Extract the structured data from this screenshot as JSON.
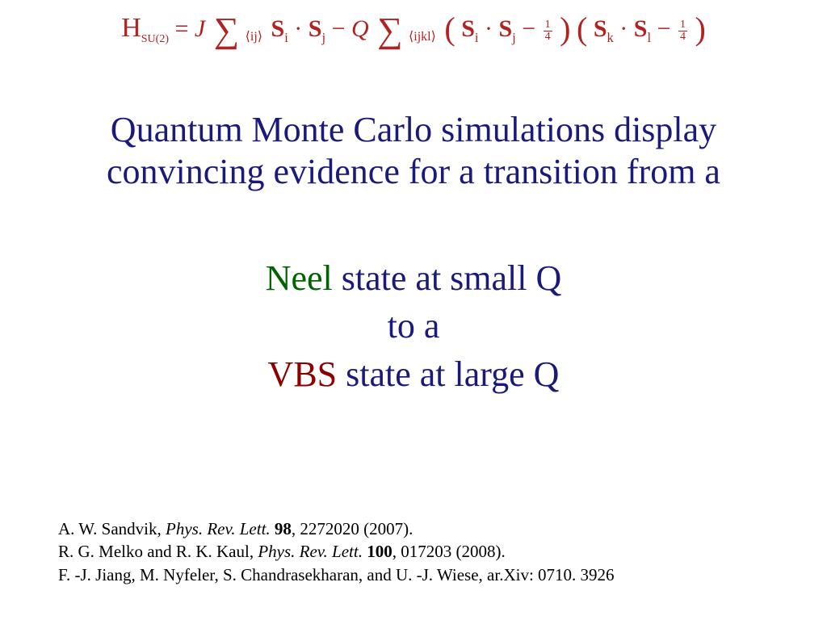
{
  "equation": {
    "color": "#b22222",
    "hamiltonian_symbol": "H",
    "subscript": "SU(2)",
    "equals": " = ",
    "J": "J",
    "sum1_under": "⟨ij⟩",
    "term1_Si": "S",
    "term1_i": "i",
    "dot": " · ",
    "term1_Sj": "S",
    "term1_j": "j",
    "minus": " − ",
    "Q": "Q",
    "sum2_under": "⟨ijkl⟩",
    "lparen": "(",
    "rparen": ")",
    "frac_num": "1",
    "frac_den": "4",
    "term2_Sk": "S",
    "term2_k": "k",
    "term2_Sl": "S",
    "term2_l": "l",
    "sigma_glyph": "∑"
  },
  "main": {
    "line1": "Quantum Monte Carlo simulations display",
    "line2": "convincing evidence for a transition from a",
    "color": "#1a1a7a",
    "font_size_pt": 33
  },
  "state": {
    "neel_word": "Neel",
    "neel_rest": " state at small Q",
    "to_a": "to a",
    "vbs_word": "VBS",
    "vbs_rest": " state at large Q",
    "neel_color": "#006400",
    "vbs_color": "#8b0000",
    "body_color": "#1a1a7a",
    "font_size_pt": 33
  },
  "refs": {
    "font_size_pt": 16,
    "r1_author": "A. W. Sandvik, ",
    "r1_journal": "Phys. Rev. Lett.",
    "r1_sp1": " ",
    "r1_vol": "98",
    "r1_rest": ", 2272020 (2007).",
    "r2_author": "R. G. Melko and R. K. Kaul,  ",
    "r2_journal": "Phys. Rev. Lett.",
    "r2_sp1": " ",
    "r2_vol": "100",
    "r2_rest": ", 017203 (2008).",
    "r3": "F. -J. Jiang, M. Nyfeler, S. Chandrasekharan, and U. -J. Wiese, ar.Xiv: 0710. 3926"
  }
}
